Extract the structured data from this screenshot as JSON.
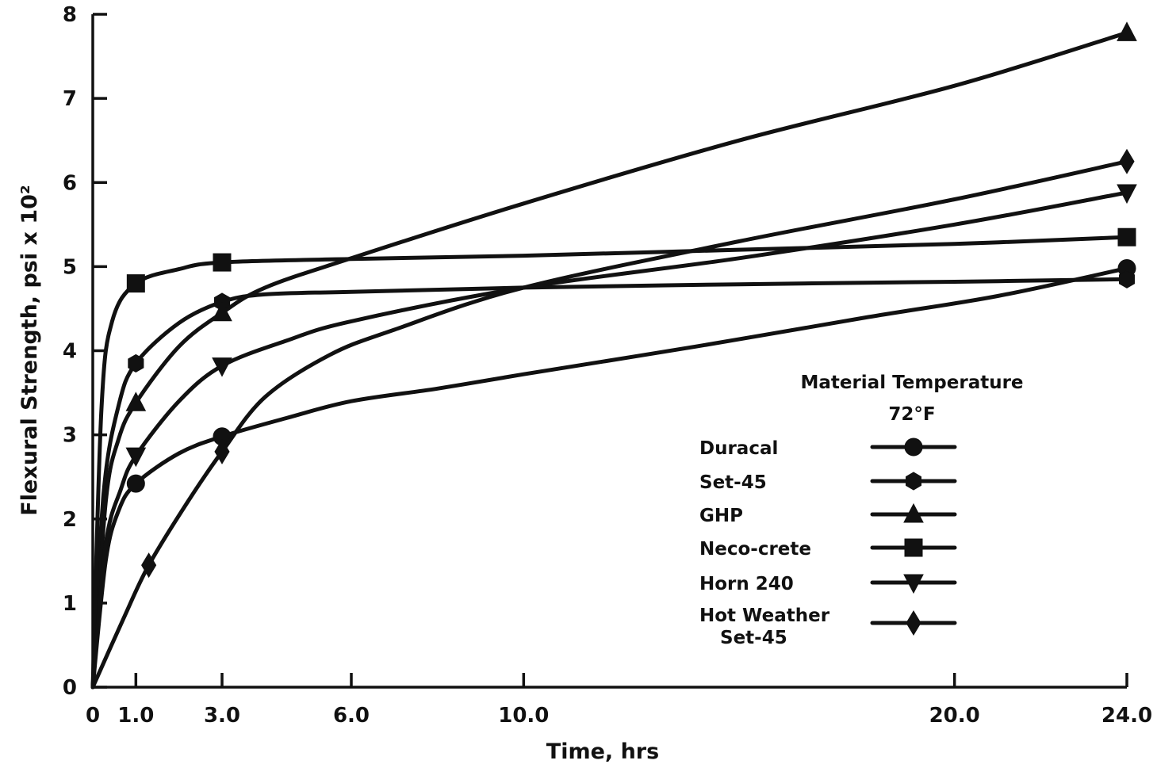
{
  "chart_data": {
    "type": "line",
    "title": "",
    "xlabel": "Time, hrs",
    "ylabel": "Flexural Strength, psi x 10²",
    "xlim": [
      0,
      24
    ],
    "ylim": [
      0,
      8
    ],
    "xticks": [
      0,
      1,
      3,
      6,
      10,
      20,
      24
    ],
    "xtick_labels": [
      "0",
      "1.0",
      "3.0",
      "6.0",
      "10.0",
      "20.0",
      "24.0"
    ],
    "yticks": [
      0,
      1,
      2,
      3,
      4,
      5,
      6,
      7,
      8
    ],
    "ytick_labels": [
      "0",
      "1",
      "2",
      "3",
      "4",
      "5",
      "6",
      "7",
      "8"
    ],
    "grid": false,
    "legend": {
      "placement": "bottom-right",
      "title": "Material Temperature",
      "subtitle": "72°F"
    },
    "series": [
      {
        "name": "Duracal",
        "marker": "circle",
        "points": [
          [
            0,
            0
          ],
          [
            1,
            2.42
          ],
          [
            3,
            2.98
          ],
          [
            24,
            4.98
          ]
        ],
        "curve": [
          [
            0,
            0
          ],
          [
            0.3,
            1.5
          ],
          [
            0.6,
            2.1
          ],
          [
            1,
            2.42
          ],
          [
            2,
            2.78
          ],
          [
            3,
            2.98
          ],
          [
            4.5,
            3.2
          ],
          [
            6,
            3.4
          ],
          [
            8,
            3.55
          ],
          [
            10,
            3.72
          ],
          [
            14,
            4.05
          ],
          [
            18,
            4.4
          ],
          [
            21,
            4.65
          ],
          [
            24,
            4.98
          ]
        ]
      },
      {
        "name": "Set-45",
        "marker": "hexagon",
        "points": [
          [
            0,
            0
          ],
          [
            1,
            3.85
          ],
          [
            3,
            4.58
          ],
          [
            24,
            4.85
          ]
        ],
        "curve": [
          [
            0,
            0
          ],
          [
            0.25,
            2.3
          ],
          [
            0.6,
            3.35
          ],
          [
            1,
            3.85
          ],
          [
            2,
            4.33
          ],
          [
            3,
            4.58
          ],
          [
            4,
            4.67
          ],
          [
            6,
            4.7
          ],
          [
            10,
            4.75
          ],
          [
            15,
            4.79
          ],
          [
            20,
            4.82
          ],
          [
            24,
            4.85
          ]
        ]
      },
      {
        "name": "GHP",
        "marker": "triangle-up",
        "points": [
          [
            0,
            0
          ],
          [
            1,
            3.38
          ],
          [
            3,
            4.45
          ],
          [
            24,
            7.78
          ]
        ],
        "curve": [
          [
            0,
            0
          ],
          [
            0.3,
            2.2
          ],
          [
            0.6,
            2.95
          ],
          [
            1,
            3.38
          ],
          [
            2,
            4.05
          ],
          [
            3,
            4.45
          ],
          [
            4,
            4.75
          ],
          [
            6,
            5.1
          ],
          [
            10,
            5.75
          ],
          [
            15,
            6.5
          ],
          [
            20,
            7.15
          ],
          [
            24,
            7.78
          ]
        ]
      },
      {
        "name": "Neco-crete",
        "marker": "square",
        "points": [
          [
            0,
            0
          ],
          [
            1,
            4.8
          ],
          [
            3,
            5.05
          ],
          [
            24,
            5.35
          ]
        ],
        "curve": [
          [
            0,
            0
          ],
          [
            0.2,
            3.3
          ],
          [
            0.45,
            4.35
          ],
          [
            1,
            4.8
          ],
          [
            2,
            4.97
          ],
          [
            3,
            5.05
          ],
          [
            6,
            5.09
          ],
          [
            10,
            5.13
          ],
          [
            15,
            5.2
          ],
          [
            20,
            5.27
          ],
          [
            24,
            5.35
          ]
        ]
      },
      {
        "name": "Horn 240",
        "marker": "triangle-down",
        "points": [
          [
            0,
            0
          ],
          [
            1,
            2.75
          ],
          [
            3,
            3.82
          ],
          [
            24,
            5.88
          ]
        ],
        "curve": [
          [
            0,
            0
          ],
          [
            0.3,
            1.7
          ],
          [
            0.65,
            2.35
          ],
          [
            1,
            2.75
          ],
          [
            2,
            3.4
          ],
          [
            3,
            3.82
          ],
          [
            4.5,
            4.12
          ],
          [
            6,
            4.35
          ],
          [
            10,
            4.75
          ],
          [
            15,
            5.1
          ],
          [
            20,
            5.5
          ],
          [
            24,
            5.88
          ]
        ]
      },
      {
        "name": "Hot Weather Set-45",
        "marker": "diamond",
        "points": [
          [
            0,
            0
          ],
          [
            1.3,
            1.45
          ],
          [
            3,
            2.8
          ],
          [
            24,
            6.25
          ]
        ],
        "curve": [
          [
            0,
            0
          ],
          [
            0.7,
            0.8
          ],
          [
            1.3,
            1.45
          ],
          [
            2.2,
            2.2
          ],
          [
            3,
            2.8
          ],
          [
            4,
            3.45
          ],
          [
            5.5,
            3.95
          ],
          [
            7,
            4.25
          ],
          [
            10,
            4.75
          ],
          [
            15,
            5.3
          ],
          [
            20,
            5.8
          ],
          [
            24,
            6.25
          ]
        ]
      }
    ]
  }
}
